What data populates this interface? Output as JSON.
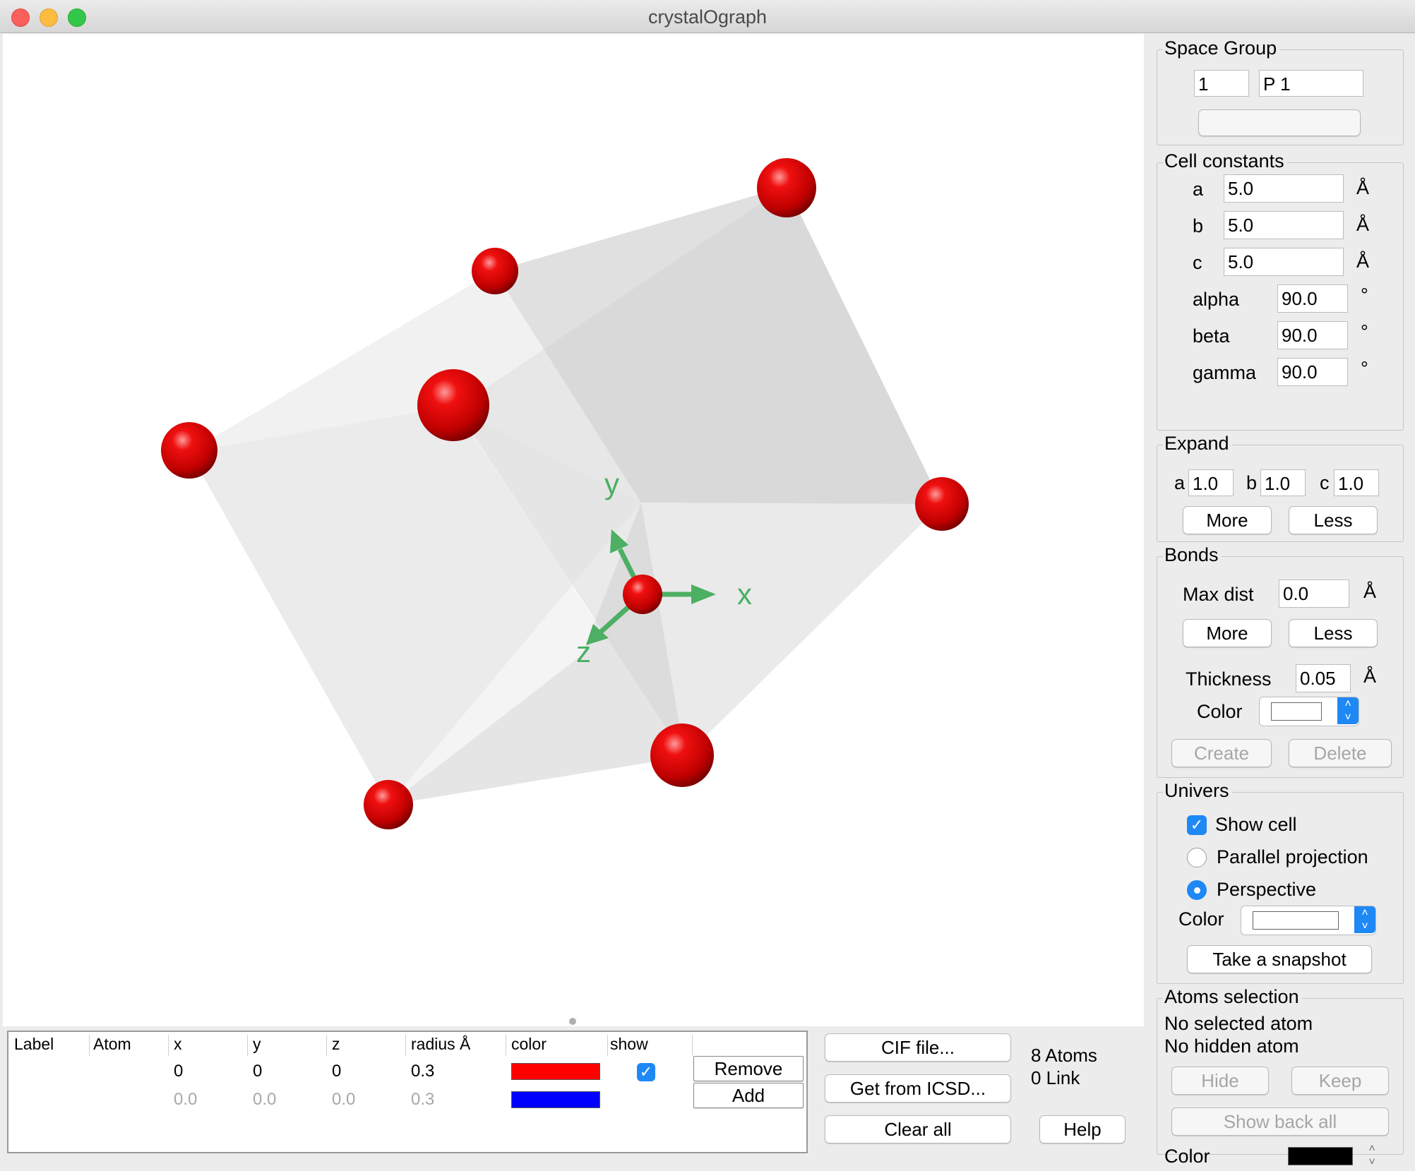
{
  "window": {
    "title": "crystalOgraph"
  },
  "viewer": {
    "axis_labels": {
      "x": "x",
      "y": "y",
      "z": "z"
    },
    "colors": {
      "atom": "#e00000",
      "axes": "#4caf63",
      "cell_face": "#d0d0d0"
    }
  },
  "atoms_table": {
    "headers": [
      "Label",
      "Atom",
      "x",
      "y",
      "z",
      "radius Å",
      "color",
      "show"
    ],
    "rows": [
      {
        "label": "",
        "atom": "",
        "x": "0",
        "y": "0",
        "z": "0",
        "radius": "0.3",
        "color": "#ff0000",
        "show": true
      },
      {
        "label": "",
        "atom": "",
        "x": "0.0",
        "y": "0.0",
        "z": "0.0",
        "radius": "0.3",
        "color": "#0000ff",
        "show": false
      }
    ],
    "remove_label": "Remove",
    "add_label": "Add"
  },
  "actions": {
    "cif_label": "CIF file...",
    "icsd_label": "Get from ICSD...",
    "clear_label": "Clear all",
    "help_label": "Help",
    "atoms_count": "8 Atoms",
    "links_count": "0 Link"
  },
  "space_group": {
    "title": "Space Group",
    "number": "1",
    "symbol": "P 1"
  },
  "cell": {
    "title": "Cell constants",
    "a_label": "a",
    "a": "5.0",
    "b_label": "b",
    "b": "5.0",
    "c_label": "c",
    "c": "5.0",
    "alpha_label": "alpha",
    "alpha": "90.0",
    "beta_label": "beta",
    "beta": "90.0",
    "gamma_label": "gamma",
    "gamma": "90.0",
    "length_unit": "Å",
    "angle_unit": "°"
  },
  "expand": {
    "title": "Expand",
    "a_label": "a",
    "a": "1.0",
    "b_label": "b",
    "b": "1.0",
    "c_label": "c",
    "c": "1.0",
    "more_label": "More",
    "less_label": "Less"
  },
  "bonds": {
    "title": "Bonds",
    "maxdist_label": "Max dist",
    "maxdist": "0.0",
    "more_label": "More",
    "less_label": "Less",
    "thickness_label": "Thickness",
    "thickness": "0.05",
    "unit": "Å",
    "color_label": "Color",
    "color": "#ffffff",
    "create_label": "Create",
    "delete_label": "Delete"
  },
  "univers": {
    "title": "Univers",
    "show_cell_label": "Show cell",
    "show_cell": true,
    "parallel_label": "Parallel projection",
    "perspective_label": "Perspective",
    "projection": "perspective",
    "color_label": "Color",
    "color": "#ffffff",
    "snapshot_label": "Take a snapshot"
  },
  "selection": {
    "title": "Atoms selection",
    "selected_text": "No selected atom",
    "hidden_text": "No hidden atom",
    "hide_label": "Hide",
    "keep_label": "Keep",
    "show_back_label": "Show back all",
    "color_label": "Color",
    "color": "#000000"
  }
}
